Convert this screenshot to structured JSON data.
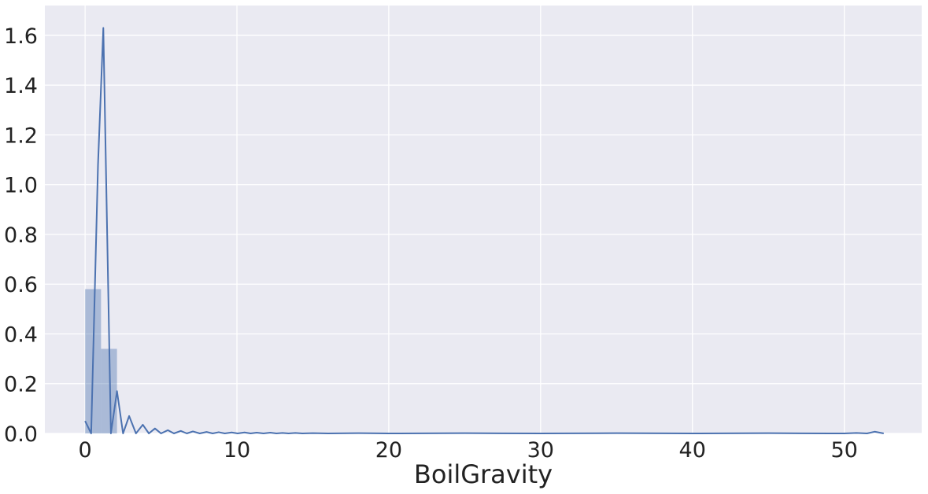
{
  "chart_data": {
    "type": "histogram",
    "title": "",
    "xlabel": "BoilGravity",
    "ylabel": "",
    "xlim": [
      -2.65,
      55.1
    ],
    "ylim": [
      0,
      1.72
    ],
    "x_ticks": [
      0,
      10,
      20,
      30,
      40,
      50
    ],
    "y_ticks": [
      0.0,
      0.2,
      0.4,
      0.6,
      0.8,
      1.0,
      1.2,
      1.4,
      1.6
    ],
    "grid": true,
    "legend": "none",
    "colors": {
      "background": "#eaeaf2",
      "grid": "#ffffff",
      "bar": "#4c72b0",
      "line": "#4c72b0"
    },
    "histogram": {
      "bins": [
        {
          "x0": 0.0,
          "x1": 1.05,
          "density": 0.58
        },
        {
          "x0": 1.05,
          "x1": 2.1,
          "density": 0.34
        }
      ]
    },
    "kde_line": {
      "x": [
        0.0,
        0.4,
        0.85,
        1.2,
        1.7,
        2.1,
        2.5,
        2.9,
        3.35,
        3.8,
        4.2,
        4.6,
        5.0,
        5.45,
        5.85,
        6.3,
        6.7,
        7.1,
        7.55,
        8.0,
        8.4,
        8.8,
        9.2,
        9.65,
        10.05,
        10.5,
        10.9,
        11.3,
        11.75,
        12.2,
        12.6,
        13.0,
        13.4,
        13.85,
        14.3,
        15.0,
        16.0,
        18.0,
        20.0,
        25.0,
        30.0,
        35.0,
        40.0,
        45.0,
        49.0,
        50.0,
        50.8,
        51.5,
        52.0,
        52.6
      ],
      "y": [
        0.05,
        0.0,
        1.08,
        1.63,
        0.0,
        0.17,
        0.0,
        0.07,
        0.0,
        0.035,
        0.0,
        0.02,
        0.0,
        0.013,
        0.0,
        0.01,
        0.0,
        0.008,
        0.0,
        0.006,
        0.0,
        0.005,
        0.0,
        0.004,
        0.0,
        0.004,
        0.0,
        0.003,
        0.0,
        0.003,
        0.0,
        0.002,
        0.0,
        0.002,
        0.0,
        0.001,
        0.0,
        0.001,
        0.0,
        0.001,
        0.0,
        0.001,
        0.0,
        0.001,
        0.0,
        0.0,
        0.002,
        0.0,
        0.007,
        0.0
      ]
    }
  }
}
